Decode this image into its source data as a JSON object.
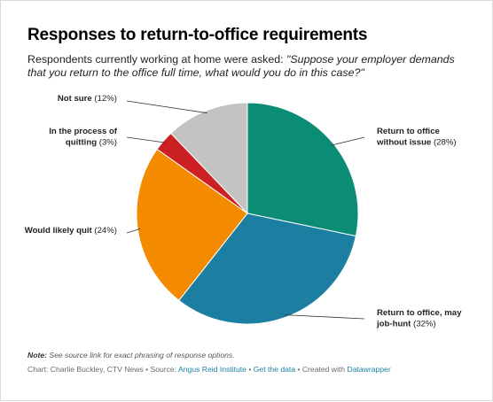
{
  "chart_data": {
    "type": "pie",
    "title": "Responses to return-to-office requirements",
    "subtitle_intro": "Respondents currently working at home were asked: ",
    "subtitle_question": "\"Suppose your employer demands that you return to the office full time, what would you do in this case?\"",
    "slices": [
      {
        "lines": [
          "Return to office",
          "without issue"
        ],
        "pct_label": "(28%)",
        "value": 28,
        "color": "#0b8c74"
      },
      {
        "lines": [
          "Return to office, may",
          "job-hunt"
        ],
        "pct_label": "(32%)",
        "value": 32,
        "color": "#1c7ea1"
      },
      {
        "lines": [
          "Would likely quit"
        ],
        "pct_label": "(24%)",
        "value": 24,
        "color": "#f48a00"
      },
      {
        "lines": [
          "In the process of",
          "quitting"
        ],
        "pct_label": "(3%)",
        "value": 3,
        "color": "#cc2022"
      },
      {
        "lines": [
          "Not sure"
        ],
        "pct_label": "(12%)",
        "value": 12,
        "color": "#c3c3c3"
      }
    ],
    "start": "12 o'clock, clockwise",
    "legend": "none (direct labels)"
  },
  "notes": {
    "note_label": "Note:",
    "note_text": " See source link for exact phrasing of response options."
  },
  "footer": {
    "credit": "Chart: Charlie Buckley, CTV News",
    "sep1": " • Source: ",
    "source": "Angus Reid Institute",
    "sep2": " • ",
    "get_data": "Get the data",
    "sep3": " • Created with ",
    "tool": "Datawrapper"
  }
}
